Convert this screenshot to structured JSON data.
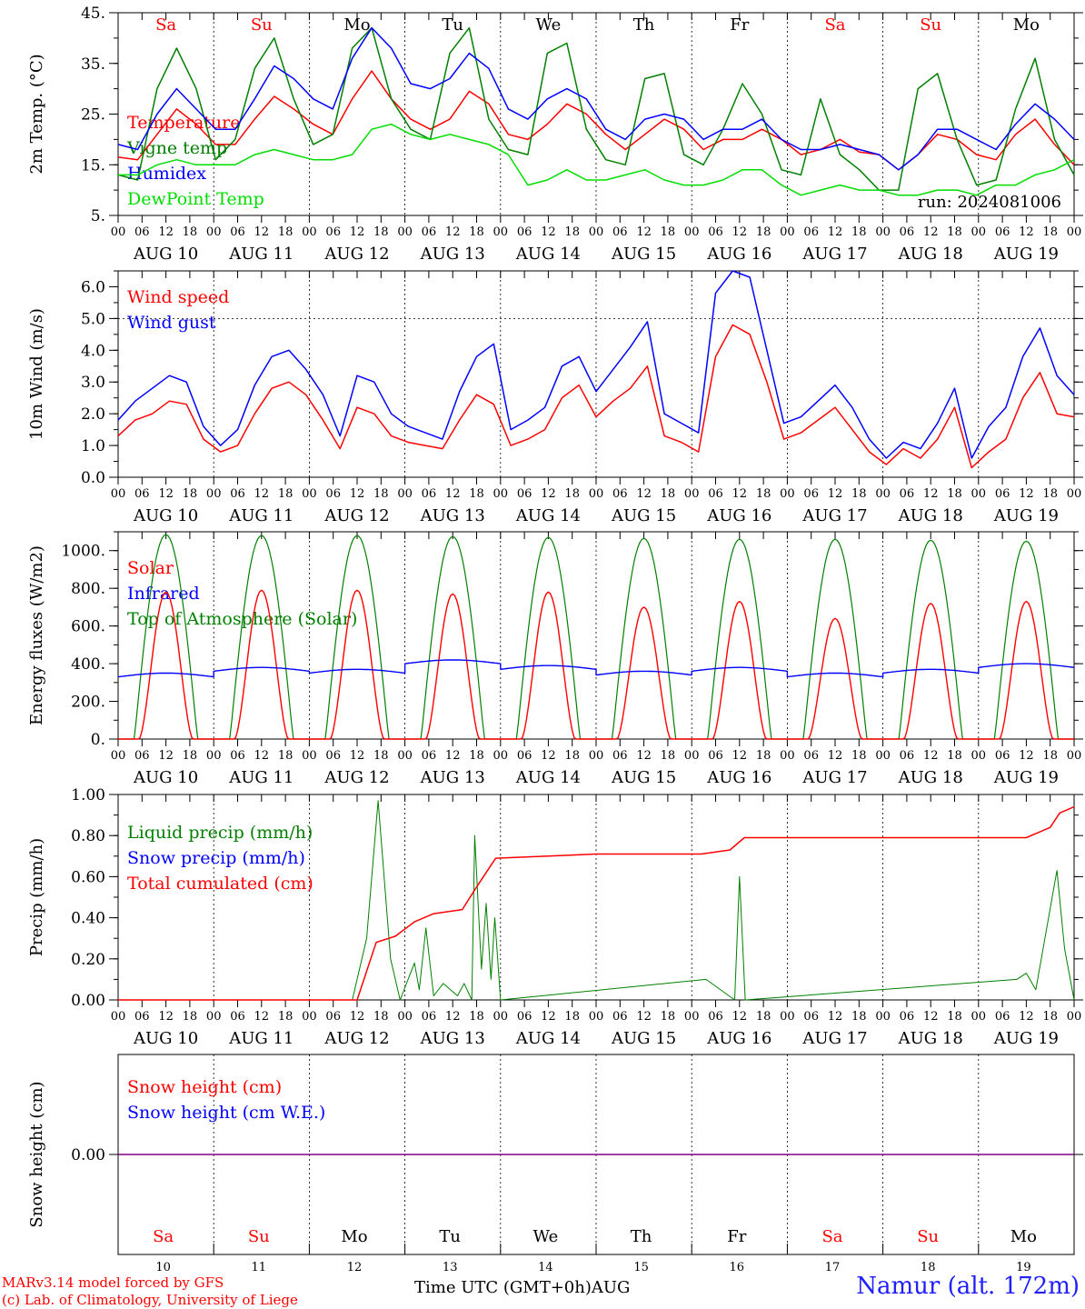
{
  "chart_data": [
    {
      "type": "line",
      "ylabel": "2m Temp. (°C)",
      "ylim": [
        5,
        45
      ],
      "yticks": [
        "5.",
        "15.",
        "25.",
        "35.",
        "45."
      ],
      "legend": [
        "Temperature",
        "Vigne temp",
        "Humidex",
        "DewPoint Temp"
      ],
      "annotation": "run: 2024081006",
      "colors": [
        "#ff0000",
        "#008000",
        "#0000ff",
        "#00dd00"
      ],
      "series": [
        {
          "name": "Temperature",
          "values": [
            16.5,
            16,
            21,
            26,
            23,
            19,
            19,
            24,
            28.5,
            26,
            23,
            21,
            28,
            33.5,
            28,
            24,
            22,
            24,
            29.5,
            27,
            21,
            20,
            23,
            27,
            25,
            21,
            18,
            21,
            24,
            22,
            18,
            20,
            20,
            22,
            20,
            17,
            18,
            20,
            17.5,
            17,
            14,
            17,
            21,
            20,
            17,
            16,
            21,
            24,
            19,
            15
          ]
        },
        {
          "name": "Vigne temp",
          "values": [
            13,
            12,
            30,
            38,
            30,
            16,
            20,
            34,
            40,
            28,
            19,
            21,
            38,
            42,
            28,
            22,
            20,
            37,
            42,
            24,
            18,
            17,
            37,
            39,
            22,
            16,
            15,
            32,
            33,
            17,
            15,
            22,
            31,
            25,
            14,
            13,
            28,
            17,
            14,
            10,
            10,
            30,
            33,
            20,
            11,
            12,
            26,
            36,
            20,
            13
          ]
        },
        {
          "name": "Humidex",
          "values": [
            19,
            18,
            25,
            30,
            26,
            22,
            22,
            28,
            34.5,
            32,
            28,
            26,
            36,
            42,
            38,
            31,
            30,
            32,
            37,
            34,
            26,
            24,
            28,
            30,
            28,
            22,
            20,
            24,
            25,
            24,
            20,
            22,
            22,
            24,
            20,
            18,
            18,
            19,
            18,
            17,
            14,
            17,
            22,
            22,
            20,
            18,
            23,
            27,
            24,
            20
          ]
        },
        {
          "name": "DewPoint Temp",
          "values": [
            13,
            13,
            15,
            16,
            15,
            15,
            15,
            17,
            18,
            17,
            16,
            16,
            17,
            22,
            23,
            21,
            20,
            21,
            20,
            19,
            17,
            11,
            12,
            14,
            12,
            12,
            13,
            14,
            12,
            11,
            11,
            12,
            14,
            14,
            11,
            9,
            10,
            11,
            10,
            10,
            9,
            9,
            10,
            10,
            9,
            11,
            11,
            13,
            14,
            16
          ]
        }
      ]
    },
    {
      "type": "line",
      "ylabel": "10m Wind (m/s)",
      "ylim": [
        0,
        6.5
      ],
      "yticks": [
        "0.0",
        "1.0",
        "2.0",
        "3.0",
        "4.0",
        "5.0",
        "6.0"
      ],
      "legend": [
        "Wind speed",
        "Wind gust"
      ],
      "colors": [
        "#ff0000",
        "#0000ff"
      ],
      "series": [
        {
          "name": "Wind speed",
          "values": [
            1.3,
            1.8,
            2.0,
            2.4,
            2.3,
            1.2,
            0.8,
            1.0,
            2.0,
            2.8,
            3.0,
            2.6,
            1.8,
            0.9,
            2.2,
            2.0,
            1.3,
            1.1,
            1.0,
            0.9,
            1.8,
            2.6,
            2.3,
            1.0,
            1.2,
            1.5,
            2.5,
            2.9,
            1.9,
            2.4,
            2.8,
            3.5,
            1.3,
            1.1,
            0.8,
            3.8,
            4.8,
            4.5,
            3.0,
            1.2,
            1.4,
            1.8,
            2.2,
            1.5,
            0.8,
            0.4,
            0.9,
            0.6,
            1.2,
            2.2,
            0.3,
            0.8,
            1.2,
            2.5,
            3.3,
            2.0,
            1.9
          ]
        },
        {
          "name": "Wind gust",
          "values": [
            1.8,
            2.4,
            2.8,
            3.2,
            3.0,
            1.6,
            1.0,
            1.5,
            2.9,
            3.8,
            4.0,
            3.4,
            2.6,
            1.3,
            3.2,
            3.0,
            2.0,
            1.6,
            1.4,
            1.2,
            2.7,
            3.8,
            4.2,
            1.5,
            1.8,
            2.2,
            3.5,
            3.8,
            2.7,
            3.4,
            4.1,
            4.9,
            2.0,
            1.7,
            1.4,
            5.8,
            6.5,
            6.3,
            4.0,
            1.7,
            1.9,
            2.4,
            2.9,
            2.2,
            1.2,
            0.6,
            1.1,
            0.9,
            1.7,
            2.8,
            0.6,
            1.6,
            2.2,
            3.8,
            4.7,
            3.2,
            2.6
          ]
        }
      ]
    },
    {
      "type": "line",
      "ylabel": "Energy fluxes (W/m2)",
      "ylim": [
        0,
        1100
      ],
      "yticks": [
        "0.",
        "200.",
        "400.",
        "600.",
        "800.",
        "1000."
      ],
      "legend": [
        "Solar",
        "Infrared",
        "Top of Atmosphere (Solar)"
      ],
      "colors": [
        "#ff0000",
        "#0000ff",
        "#008000"
      ],
      "series": [
        {
          "name": "Solar",
          "daily_peaks": [
            780,
            790,
            790,
            770,
            780,
            700,
            730,
            640,
            720,
            730
          ]
        },
        {
          "name": "Infrared",
          "daily_levels": [
            330,
            360,
            350,
            400,
            370,
            340,
            360,
            330,
            350,
            380
          ]
        },
        {
          "name": "Top of Atmosphere (Solar)",
          "daily_peaks": [
            1085,
            1080,
            1080,
            1075,
            1070,
            1065,
            1060,
            1060,
            1055,
            1050
          ]
        }
      ]
    },
    {
      "type": "line",
      "ylabel": "Precip (mm/h)",
      "ylim": [
        0,
        1.0
      ],
      "yticks": [
        "0.00",
        "0.20",
        "0.40",
        "0.60",
        "0.80",
        "1.00"
      ],
      "legend": [
        "Liquid precip (mm/h)",
        "Snow precip (mm/h)",
        "Total cumulated (cm)"
      ],
      "colors": [
        "#008000",
        "#0000ff",
        "#ff0000"
      ],
      "series": [
        {
          "name": "Liquid precip (mm/h)",
          "points": [
            [
              2.45,
              0
            ],
            [
              2.6,
              0.3
            ],
            [
              2.72,
              0.97
            ],
            [
              2.85,
              0.2
            ],
            [
              2.95,
              0
            ],
            [
              3.1,
              0.18
            ],
            [
              3.15,
              0.05
            ],
            [
              3.22,
              0.35
            ],
            [
              3.3,
              0.02
            ],
            [
              3.4,
              0.08
            ],
            [
              3.55,
              0.02
            ],
            [
              3.62,
              0.08
            ],
            [
              3.7,
              0.0
            ],
            [
              3.73,
              0.8
            ],
            [
              3.8,
              0.15
            ],
            [
              3.85,
              0.47
            ],
            [
              3.9,
              0.1
            ],
            [
              3.94,
              0.4
            ],
            [
              4.0,
              0.0
            ],
            [
              6.15,
              0.1
            ],
            [
              6.45,
              0.0
            ],
            [
              6.5,
              0.6
            ],
            [
              6.56,
              0.0
            ],
            [
              9.4,
              0.1
            ],
            [
              9.5,
              0.13
            ],
            [
              9.6,
              0.05
            ],
            [
              9.82,
              0.63
            ],
            [
              9.9,
              0.25
            ],
            [
              10.0,
              0.0
            ]
          ]
        },
        {
          "name": "Total cumulated (cm)",
          "points": [
            [
              0,
              0
            ],
            [
              2.5,
              0
            ],
            [
              2.7,
              0.28
            ],
            [
              2.9,
              0.31
            ],
            [
              3.1,
              0.38
            ],
            [
              3.3,
              0.42
            ],
            [
              3.6,
              0.44
            ],
            [
              3.75,
              0.55
            ],
            [
              3.95,
              0.69
            ],
            [
              4.5,
              0.7
            ],
            [
              5.0,
              0.71
            ],
            [
              6.1,
              0.71
            ],
            [
              6.4,
              0.73
            ],
            [
              6.55,
              0.79
            ],
            [
              9.5,
              0.79
            ],
            [
              9.75,
              0.84
            ],
            [
              9.85,
              0.91
            ],
            [
              10.0,
              0.94
            ]
          ]
        }
      ]
    },
    {
      "type": "line",
      "ylabel": "Snow height (cm)",
      "yticks": [
        "0.00"
      ],
      "legend": [
        "Snow height (cm)",
        "Snow height (cm W.E.)"
      ],
      "colors": [
        "#ff0000",
        "#0000ff"
      ],
      "series": [
        {
          "name": "Snow height (cm)",
          "values": [
            0,
            0
          ]
        },
        {
          "name": "Snow height (cm W.E.)",
          "values": [
            0,
            0
          ]
        }
      ]
    }
  ],
  "days": {
    "weekday_labels": [
      "Sa",
      "Su",
      "Mo",
      "Tu",
      "We",
      "Th",
      "Fr",
      "Sa",
      "Su",
      "Mo"
    ],
    "weekday_colors": [
      "#ff0000",
      "#ff0000",
      "#000000",
      "#000000",
      "#000000",
      "#000000",
      "#000000",
      "#ff0000",
      "#ff0000",
      "#000000"
    ],
    "date_labels": [
      "AUG 10",
      "AUG 11",
      "AUG 12",
      "AUG 13",
      "AUG 14",
      "AUG 15",
      "AUG 16",
      "AUG 17",
      "AUG 18",
      "AUG 19"
    ],
    "day_numbers": [
      "10",
      "11",
      "12",
      "13",
      "14",
      "15",
      "16",
      "17",
      "18",
      "19"
    ],
    "hour_ticks": [
      "00",
      "06",
      "12",
      "18"
    ],
    "final_hour": "00"
  },
  "footer": {
    "model_line": "MARv3.14 model forced by GFS",
    "lab_line": "(c) Lab. of Climatology, University of Liege",
    "time_label": "Time UTC (GMT+0h)AUG",
    "station": "Namur (alt. 172m)"
  }
}
